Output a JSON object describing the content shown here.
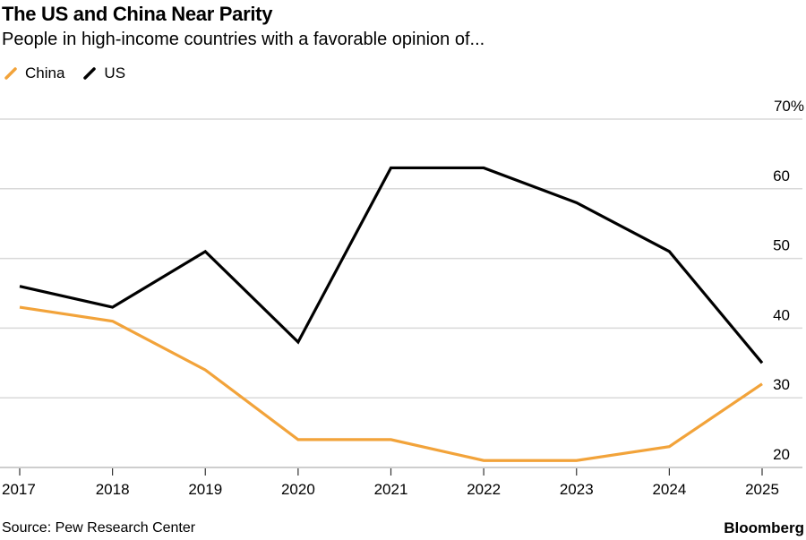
{
  "header": {
    "title": "The US and China Near Parity",
    "subtitle": "People in high-income countries with a favorable opinion of..."
  },
  "legend": [
    {
      "label": "China",
      "color": "#f2a33a",
      "icon": "line-swatch-icon"
    },
    {
      "label": "US",
      "color": "#000000",
      "icon": "line-swatch-icon"
    }
  ],
  "footer": {
    "source": "Source: Pew Research Center",
    "brand": "Bloomberg"
  },
  "chart_data": {
    "type": "line",
    "title": "The US and China Near Parity",
    "subtitle": "People in high-income countries with a favorable opinion of...",
    "xlabel": "",
    "ylabel": "",
    "x": [
      "2017",
      "2018",
      "2019",
      "2020",
      "2021",
      "2022",
      "2023",
      "2024",
      "2025"
    ],
    "series": [
      {
        "name": "China",
        "color": "#f2a33a",
        "values": [
          43,
          41,
          34,
          24,
          24,
          21,
          21,
          23,
          32
        ]
      },
      {
        "name": "US",
        "color": "#000000",
        "values": [
          46,
          43,
          51,
          38,
          63,
          63,
          58,
          51,
          35
        ]
      }
    ],
    "ylim": [
      20,
      70
    ],
    "yticks": [
      {
        "value": 70,
        "label": "70%"
      },
      {
        "value": 60,
        "label": "60"
      },
      {
        "value": 50,
        "label": "50"
      },
      {
        "value": 40,
        "label": "40"
      },
      {
        "value": 30,
        "label": "30"
      },
      {
        "value": 20,
        "label": "20"
      }
    ],
    "y_axis_side": "right",
    "grid": true,
    "legend_position": "top-left"
  }
}
